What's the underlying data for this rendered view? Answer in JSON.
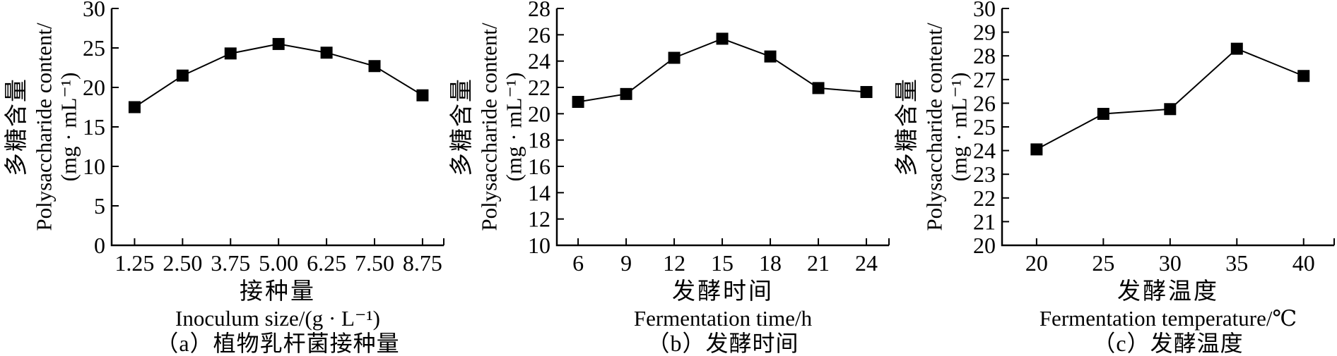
{
  "figure": {
    "background": "#ffffff",
    "ink_color": "#000000",
    "marker_shape": "filled-square"
  },
  "chart_data": [
    {
      "type": "line",
      "panel": "a",
      "caption": "（a）植物乳杆菌接种量",
      "xlabel_zh": "接种量",
      "xlabel_en": "Inoculum size/(g · L⁻¹)",
      "ylabel_zh": "多糖含量",
      "ylabel_en": "Polysaccharide content/",
      "ylabel_unit": "(mg · mL⁻¹)",
      "x": [
        1.25,
        2.5,
        3.75,
        5.0,
        6.25,
        7.5,
        8.75
      ],
      "x_tick_labels": [
        "1.25",
        "2.50",
        "3.75",
        "5.00",
        "6.25",
        "7.50",
        "8.75"
      ],
      "y": [
        17.5,
        21.5,
        24.3,
        25.5,
        24.4,
        22.7,
        19.0
      ],
      "ylim": [
        0,
        30
      ],
      "y_tick_step": 5,
      "grid": false,
      "legend": "none",
      "line_color": "#000000",
      "x_first_frac": 0.069,
      "x_last_frac": 0.936
    },
    {
      "type": "line",
      "panel": "b",
      "caption": "（b）发酵时间",
      "xlabel_zh": "发酵时间",
      "xlabel_en": "Fermentation time/h",
      "ylabel_zh": "多糖含量",
      "ylabel_en": "Polysaccharide content/",
      "ylabel_unit": "(mg · mL⁻¹)",
      "x": [
        6,
        9,
        12,
        15,
        18,
        21,
        24
      ],
      "x_tick_labels": [
        "6",
        "9",
        "12",
        "15",
        "18",
        "21",
        "24"
      ],
      "y": [
        20.9,
        21.5,
        24.25,
        25.7,
        24.35,
        21.95,
        21.65
      ],
      "ylim": [
        10,
        28
      ],
      "y_tick_step": 2,
      "grid": false,
      "legend": "none",
      "line_color": "#000000",
      "x_first_frac": 0.064,
      "x_last_frac": 0.932
    },
    {
      "type": "line",
      "panel": "c",
      "caption": "（c）发酵温度",
      "xlabel_zh": "发酵温度",
      "xlabel_en": "Fermentation temperature/℃",
      "ylabel_zh": "多糖含量",
      "ylabel_en": "Polysaccharide content/",
      "ylabel_unit": "(mg · mL⁻¹)",
      "x": [
        20,
        25,
        30,
        35,
        40
      ],
      "x_tick_labels": [
        "20",
        "25",
        "30",
        "35",
        "40"
      ],
      "y": [
        24.05,
        25.55,
        25.75,
        28.3,
        27.15
      ],
      "ylim": [
        20,
        30
      ],
      "y_tick_step": 1,
      "grid": false,
      "legend": "none",
      "line_color": "#000000",
      "x_first_frac": 0.104,
      "x_last_frac": 0.908
    }
  ]
}
